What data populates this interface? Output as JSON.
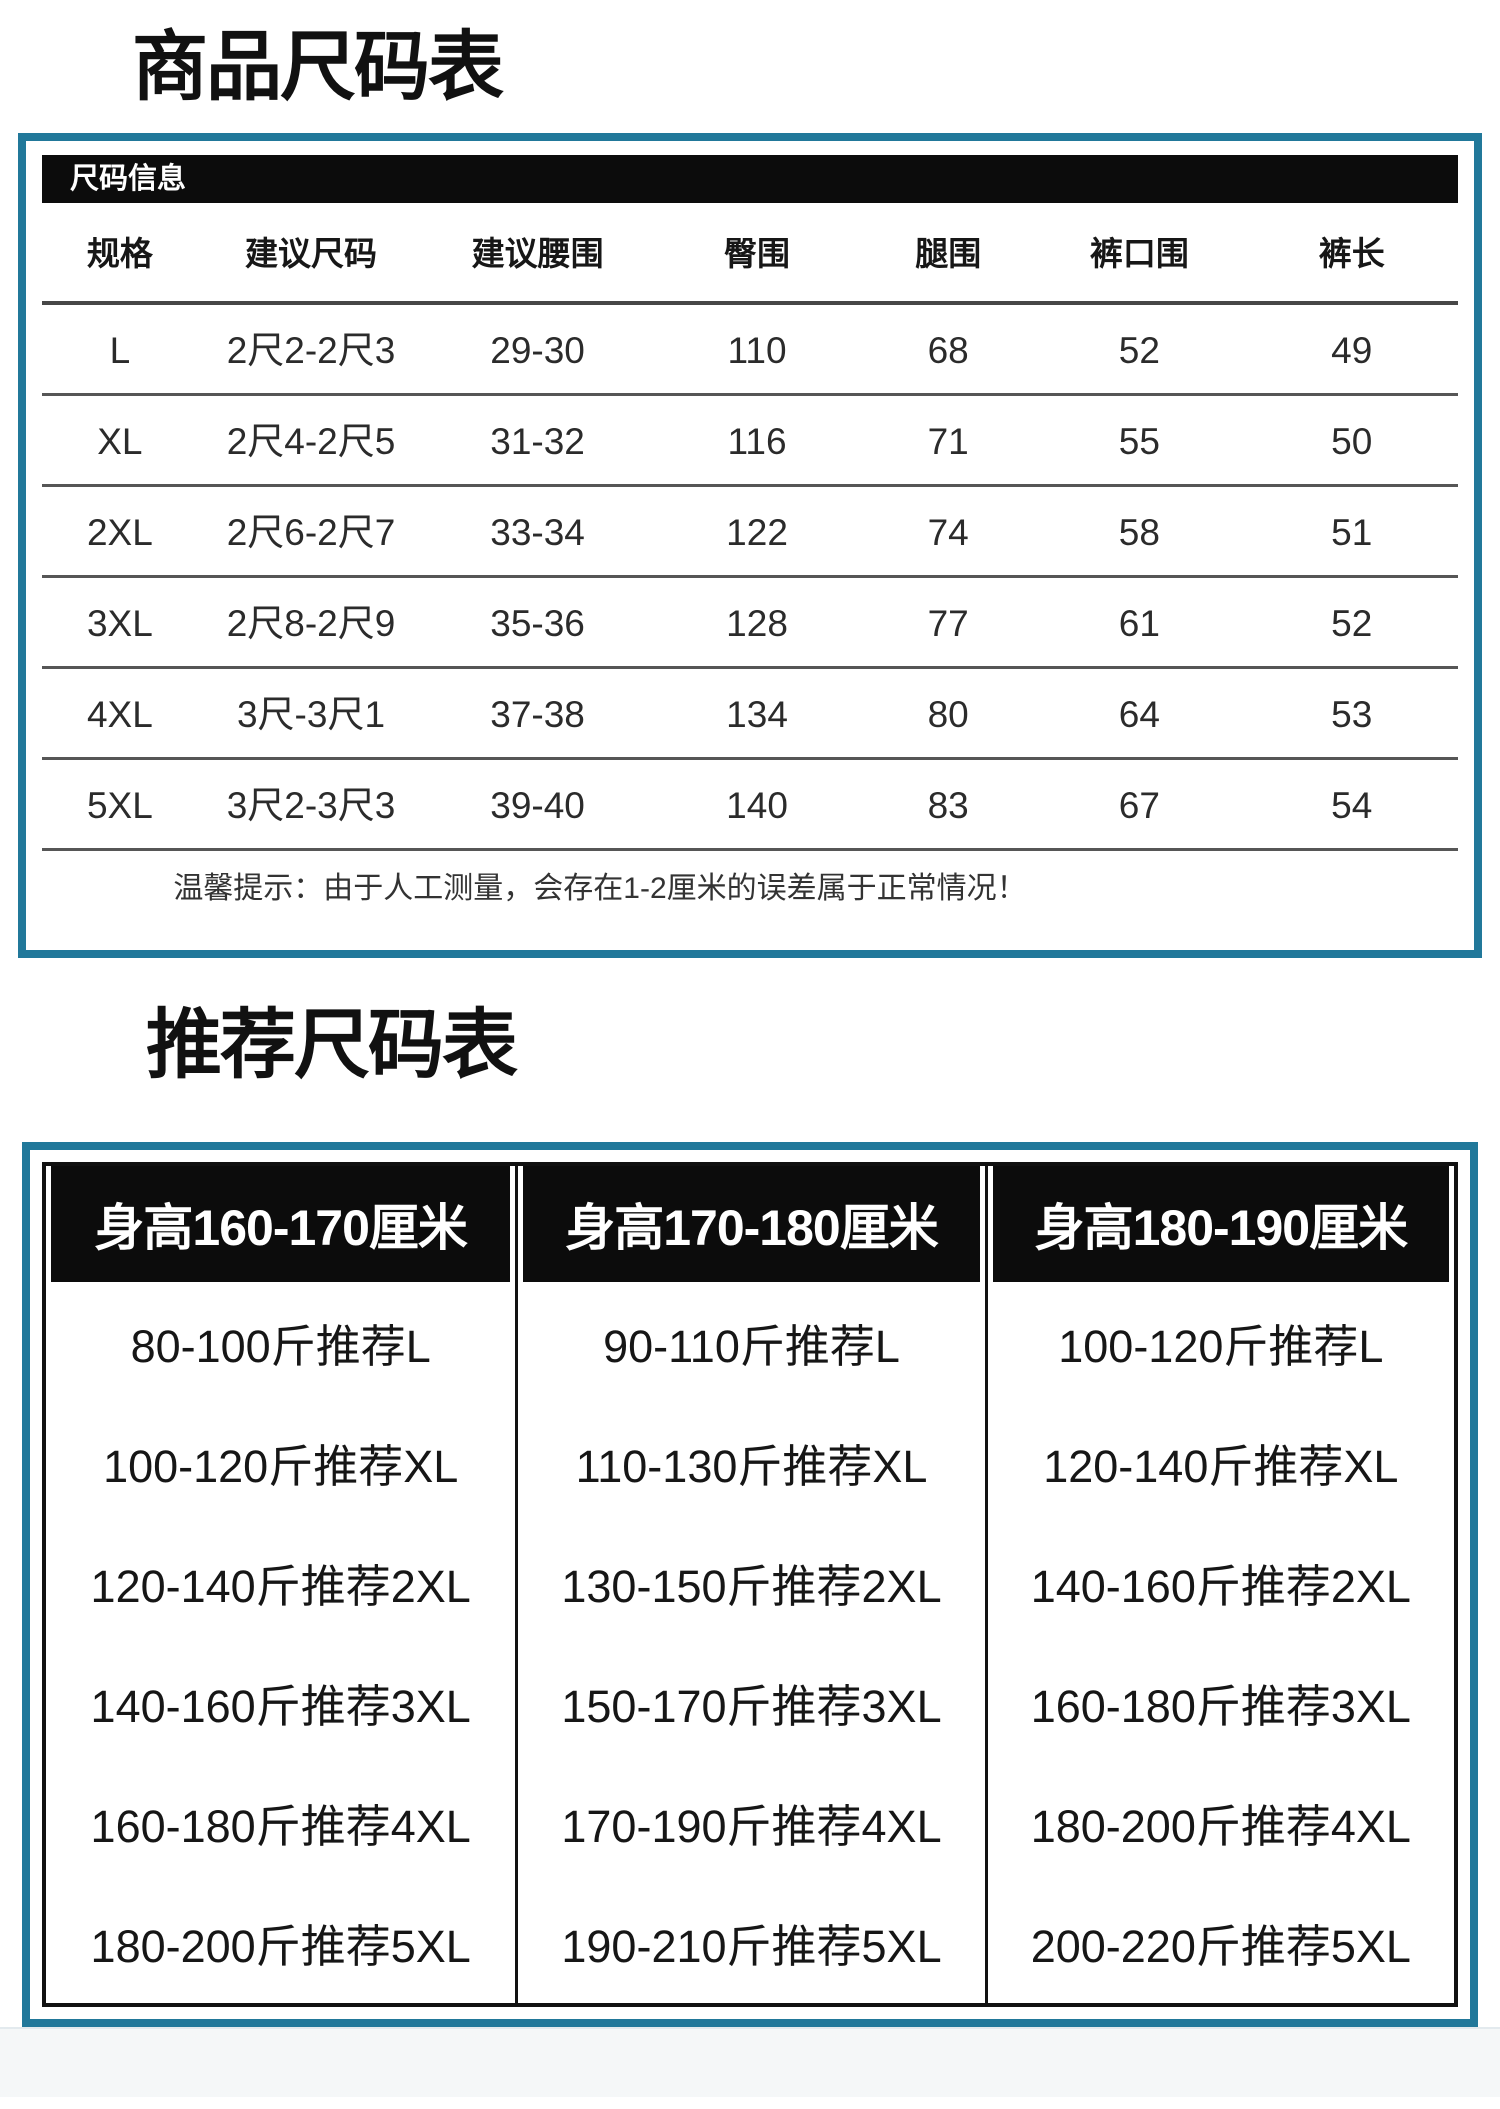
{
  "colors": {
    "accent_border": "#21789a",
    "header_bar_bg": "#0c0c0c",
    "header_bar_text": "#ffffff",
    "row_separator": "#565656"
  },
  "section1": {
    "title": "商品尺码表",
    "info_bar": "尺码信息",
    "columns": [
      "规格",
      "建议尺码",
      "建议腰围",
      "臀围",
      "腿围",
      "裤口围",
      "裤长"
    ],
    "rows": [
      [
        "L",
        "2尺2-2尺3",
        "29-30",
        "110",
        "68",
        "52",
        "49"
      ],
      [
        "XL",
        "2尺4-2尺5",
        "31-32",
        "116",
        "71",
        "55",
        "50"
      ],
      [
        "2XL",
        "2尺6-2尺7",
        "33-34",
        "122",
        "74",
        "58",
        "51"
      ],
      [
        "3XL",
        "2尺8-2尺9",
        "35-36",
        "128",
        "77",
        "61",
        "52"
      ],
      [
        "4XL",
        "3尺-3尺1",
        "37-38",
        "134",
        "80",
        "64",
        "53"
      ],
      [
        "5XL",
        "3尺2-3尺3",
        "39-40",
        "140",
        "83",
        "67",
        "54"
      ]
    ],
    "note": "温馨提示：由于人工测量，会存在1-2厘米的误差属于正常情况！"
  },
  "section2": {
    "title": "推荐尺码表",
    "columns": [
      {
        "header": "身高160-170厘米",
        "items": [
          "80-100斤推荐L",
          "100-120斤推荐XL",
          "120-140斤推荐2XL",
          "140-160斤推荐3XL",
          "160-180斤推荐4XL",
          "180-200斤推荐5XL"
        ]
      },
      {
        "header": "身高170-180厘米",
        "items": [
          "90-110斤推荐L",
          "110-130斤推荐XL",
          "130-150斤推荐2XL",
          "150-170斤推荐3XL",
          "170-190斤推荐4XL",
          "190-210斤推荐5XL"
        ]
      },
      {
        "header": "身高180-190厘米",
        "items": [
          "100-120斤推荐L",
          "120-140斤推荐XL",
          "140-160斤推荐2XL",
          "160-180斤推荐3XL",
          "180-200斤推荐4XL",
          "200-220斤推荐5XL"
        ]
      }
    ]
  }
}
